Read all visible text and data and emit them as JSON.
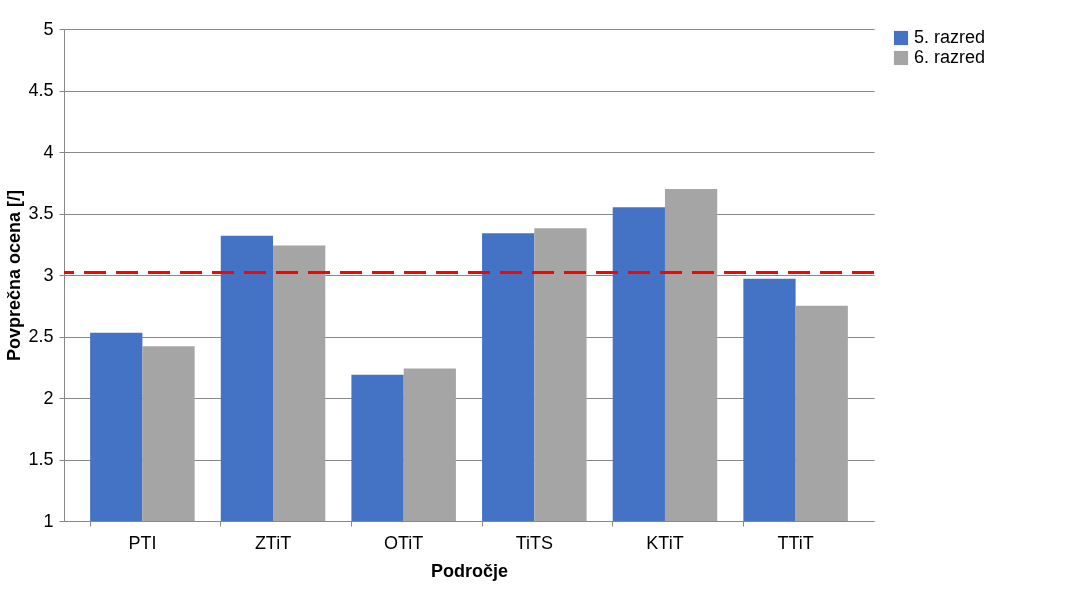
{
  "chart_data": {
    "type": "bar",
    "xlabel": "Področje",
    "ylabel": "Povprečna ocena [/]",
    "categories": [
      "PTI",
      "ZTiT",
      "OTiT",
      "TiTS",
      "KTiT",
      "TTiT"
    ],
    "series": [
      {
        "name": "5. razred",
        "color": "#4472c4",
        "values": [
          2.53,
          3.32,
          2.19,
          3.34,
          3.55,
          2.97
        ]
      },
      {
        "name": "6. razred",
        "color": "#a5a5a5",
        "values": [
          2.42,
          3.24,
          2.24,
          3.38,
          3.7,
          2.75
        ]
      }
    ],
    "ylim": [
      1,
      5
    ],
    "yticks": [
      1,
      1.5,
      2,
      2.5,
      3,
      3.5,
      4,
      4.5,
      5
    ],
    "grid": "y",
    "legend": "right",
    "ref_lines": [
      {
        "axis": "y",
        "value": 3.02,
        "color": "#ff0000",
        "line_style": "dashed"
      }
    ]
  }
}
